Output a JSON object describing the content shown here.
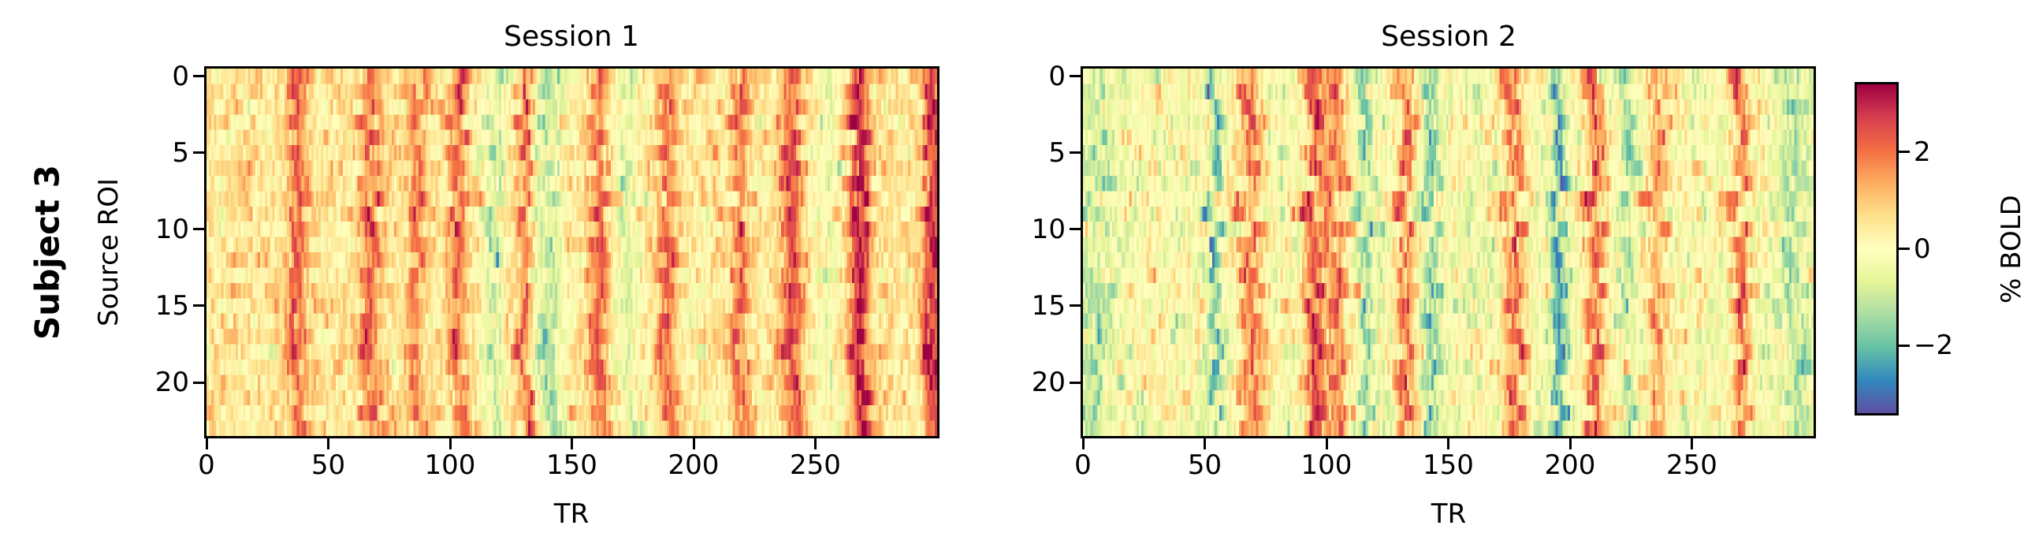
{
  "figure": {
    "row_label": "Subject 3",
    "ylabel": "Source ROI",
    "xlabel": "TR",
    "colorbar": {
      "label": "% BOLD",
      "ticks": [
        {
          "value": 2,
          "label": "2"
        },
        {
          "value": 0,
          "label": "0"
        },
        {
          "value": -2,
          "label": "−2"
        }
      ],
      "vmin": -3.4,
      "vmax": 3.4,
      "colormap": "Spectral_r",
      "stops": [
        "#5e4fa2",
        "#3288bd",
        "#66c2a5",
        "#abdda4",
        "#e6f598",
        "#ffffbf",
        "#fee08b",
        "#fdae61",
        "#f46d43",
        "#d53e4f",
        "#9e0142"
      ]
    },
    "xticks": [
      {
        "value": 0,
        "label": "0"
      },
      {
        "value": 50,
        "label": "50"
      },
      {
        "value": 100,
        "label": "100"
      },
      {
        "value": 150,
        "label": "150"
      },
      {
        "value": 200,
        "label": "200"
      },
      {
        "value": 250,
        "label": "250"
      }
    ],
    "yticks": [
      {
        "value": 0,
        "label": "0"
      },
      {
        "value": 5,
        "label": "5"
      },
      {
        "value": 10,
        "label": "10"
      },
      {
        "value": 15,
        "label": "15"
      },
      {
        "value": 20,
        "label": "20"
      }
    ],
    "panels": [
      {
        "title": "Session 1"
      },
      {
        "title": "Session 2"
      }
    ]
  },
  "chart_data": [
    {
      "type": "heatmap",
      "title": "Session 1",
      "xlabel": "TR",
      "ylabel": "Source ROI",
      "n_rows": 24,
      "n_cols": 300,
      "xlim": [
        0,
        300
      ],
      "ylim": [
        24,
        0
      ],
      "vmin": -3.4,
      "vmax": 3.4,
      "colorbar_label": "% BOLD",
      "baseline": 0.45,
      "noise": 0.75,
      "seed": 17,
      "peaks_tr": [
        {
          "tr": 37,
          "amp": 1.7,
          "width": 3
        },
        {
          "tr": 67,
          "amp": 1.6,
          "width": 3
        },
        {
          "tr": 86,
          "amp": 1.3,
          "width": 3
        },
        {
          "tr": 103,
          "amp": 1.7,
          "width": 2.5
        },
        {
          "tr": 131,
          "amp": 1.8,
          "width": 2.5
        },
        {
          "tr": 161,
          "amp": 1.5,
          "width": 3
        },
        {
          "tr": 189,
          "amp": 1.7,
          "width": 2.5
        },
        {
          "tr": 219,
          "amp": 1.6,
          "width": 2.5
        },
        {
          "tr": 240,
          "amp": 1.9,
          "width": 3
        },
        {
          "tr": 268,
          "amp": 2.6,
          "width": 3
        },
        {
          "tr": 298,
          "amp": 2.5,
          "width": 3
        }
      ],
      "troughs_tr": [
        {
          "tr": 118,
          "amp": -1.4,
          "width": 3
        },
        {
          "tr": 140,
          "amp": -1.6,
          "width": 5
        },
        {
          "tr": 173,
          "amp": -0.9,
          "width": 4
        },
        {
          "tr": 255,
          "amp": -0.8,
          "width": 4
        }
      ]
    },
    {
      "type": "heatmap",
      "title": "Session 2",
      "xlabel": "TR",
      "ylabel": "Source ROI",
      "n_rows": 24,
      "n_cols": 300,
      "xlim": [
        0,
        300
      ],
      "ylim": [
        24,
        0
      ],
      "vmin": -3.4,
      "vmax": 3.4,
      "colorbar_label": "% BOLD",
      "baseline": -0.1,
      "noise": 0.85,
      "seed": 29,
      "peaks_tr": [
        {
          "tr": 67,
          "amp": 1.7,
          "width": 2.5
        },
        {
          "tr": 72,
          "amp": 1.2,
          "width": 2
        },
        {
          "tr": 95,
          "amp": 2.6,
          "width": 3
        },
        {
          "tr": 104,
          "amp": 1.9,
          "width": 3
        },
        {
          "tr": 132,
          "amp": 2.0,
          "width": 3
        },
        {
          "tr": 177,
          "amp": 1.9,
          "width": 3
        },
        {
          "tr": 210,
          "amp": 2.1,
          "width": 3
        },
        {
          "tr": 236,
          "amp": 1.5,
          "width": 3
        },
        {
          "tr": 270,
          "amp": 2.1,
          "width": 2.5
        }
      ],
      "troughs_tr": [
        {
          "tr": 5,
          "amp": -0.8,
          "width": 6
        },
        {
          "tr": 54,
          "amp": -2.2,
          "width": 1.5
        },
        {
          "tr": 116,
          "amp": -1.6,
          "width": 2
        },
        {
          "tr": 143,
          "amp": -1.3,
          "width": 3
        },
        {
          "tr": 195,
          "amp": -2.6,
          "width": 1.8
        },
        {
          "tr": 224,
          "amp": -1.2,
          "width": 2
        },
        {
          "tr": 292,
          "amp": -1.0,
          "width": 5
        }
      ]
    }
  ]
}
